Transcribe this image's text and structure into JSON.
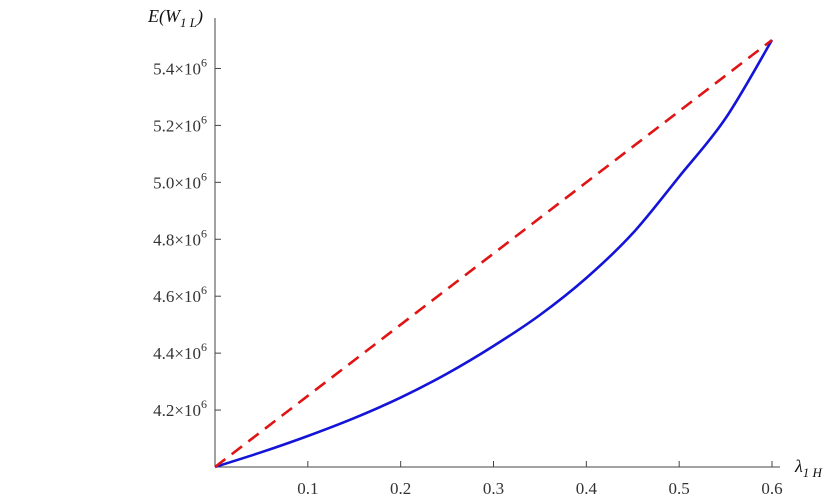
{
  "chart_data": {
    "type": "line",
    "title": "",
    "xlabel": "λ1H",
    "ylabel": "E(W1L)",
    "xlim": [
      0,
      0.6
    ],
    "ylim": [
      4000000,
      5500000
    ],
    "x_ticks": [
      0.1,
      0.2,
      0.3,
      0.4,
      0.5,
      0.6
    ],
    "x_tick_labels": [
      "0.1",
      "0.2",
      "0.3",
      "0.4",
      "0.5",
      "0.6"
    ],
    "y_ticks": [
      4200000,
      4400000,
      4600000,
      4800000,
      5000000,
      5200000,
      5400000
    ],
    "y_tick_labels": [
      "4.2×10⁶",
      "4.4×10⁶",
      "4.6×10⁶",
      "4.8×10⁶",
      "5.0×10⁶",
      "5.2×10⁶",
      "5.4×10⁶"
    ],
    "grid": false,
    "series": [
      {
        "color": "#1414d8",
        "style": "solid",
        "x": [
          0,
          0.05,
          0.1,
          0.15,
          0.2,
          0.25,
          0.3,
          0.35,
          0.4,
          0.45,
          0.5,
          0.55,
          0.6
        ],
        "values": [
          4000000,
          4052000,
          4109000,
          4172000,
          4244000,
          4328000,
          4425000,
          4534000,
          4664000,
          4821000,
          5020000,
          5225000,
          5500000
        ]
      },
      {
        "color": "#e01414",
        "style": "dashed",
        "x": [
          0,
          0.6
        ],
        "values": [
          4000000,
          5500000
        ]
      }
    ]
  }
}
